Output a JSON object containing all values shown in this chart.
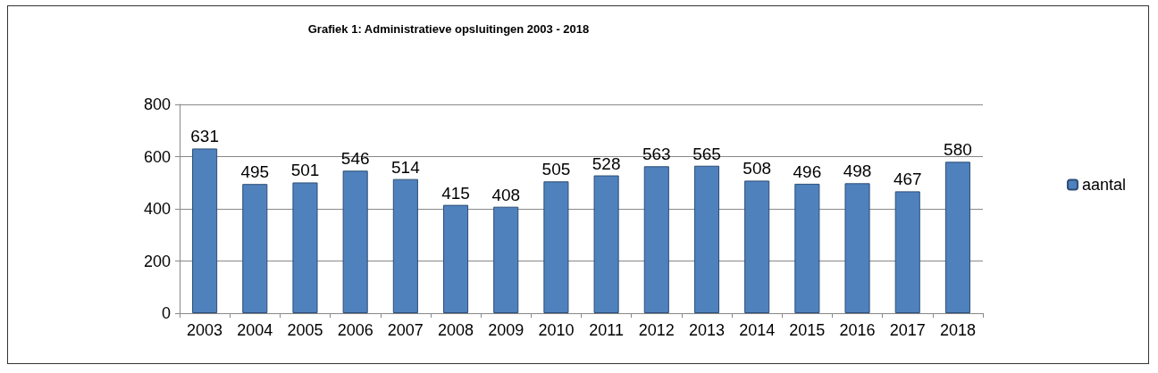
{
  "chart_data": {
    "type": "bar",
    "title": "Grafiek 1: Administratieve opsluitingen 2003 - 2018",
    "categories": [
      "2003",
      "2004",
      "2005",
      "2006",
      "2007",
      "2008",
      "2009",
      "2010",
      "2011",
      "2012",
      "2013",
      "2014",
      "2015",
      "2016",
      "2017",
      "2018"
    ],
    "series": [
      {
        "name": "aantal",
        "color": "#4f81bd",
        "values": [
          631,
          495,
          501,
          546,
          514,
          415,
          408,
          505,
          528,
          563,
          565,
          508,
          496,
          498,
          467,
          580
        ]
      }
    ],
    "ylim": [
      0,
      800
    ],
    "yticks": [
      0,
      200,
      400,
      600,
      800
    ],
    "grid": "y",
    "legend": "right",
    "data_labels": true
  }
}
